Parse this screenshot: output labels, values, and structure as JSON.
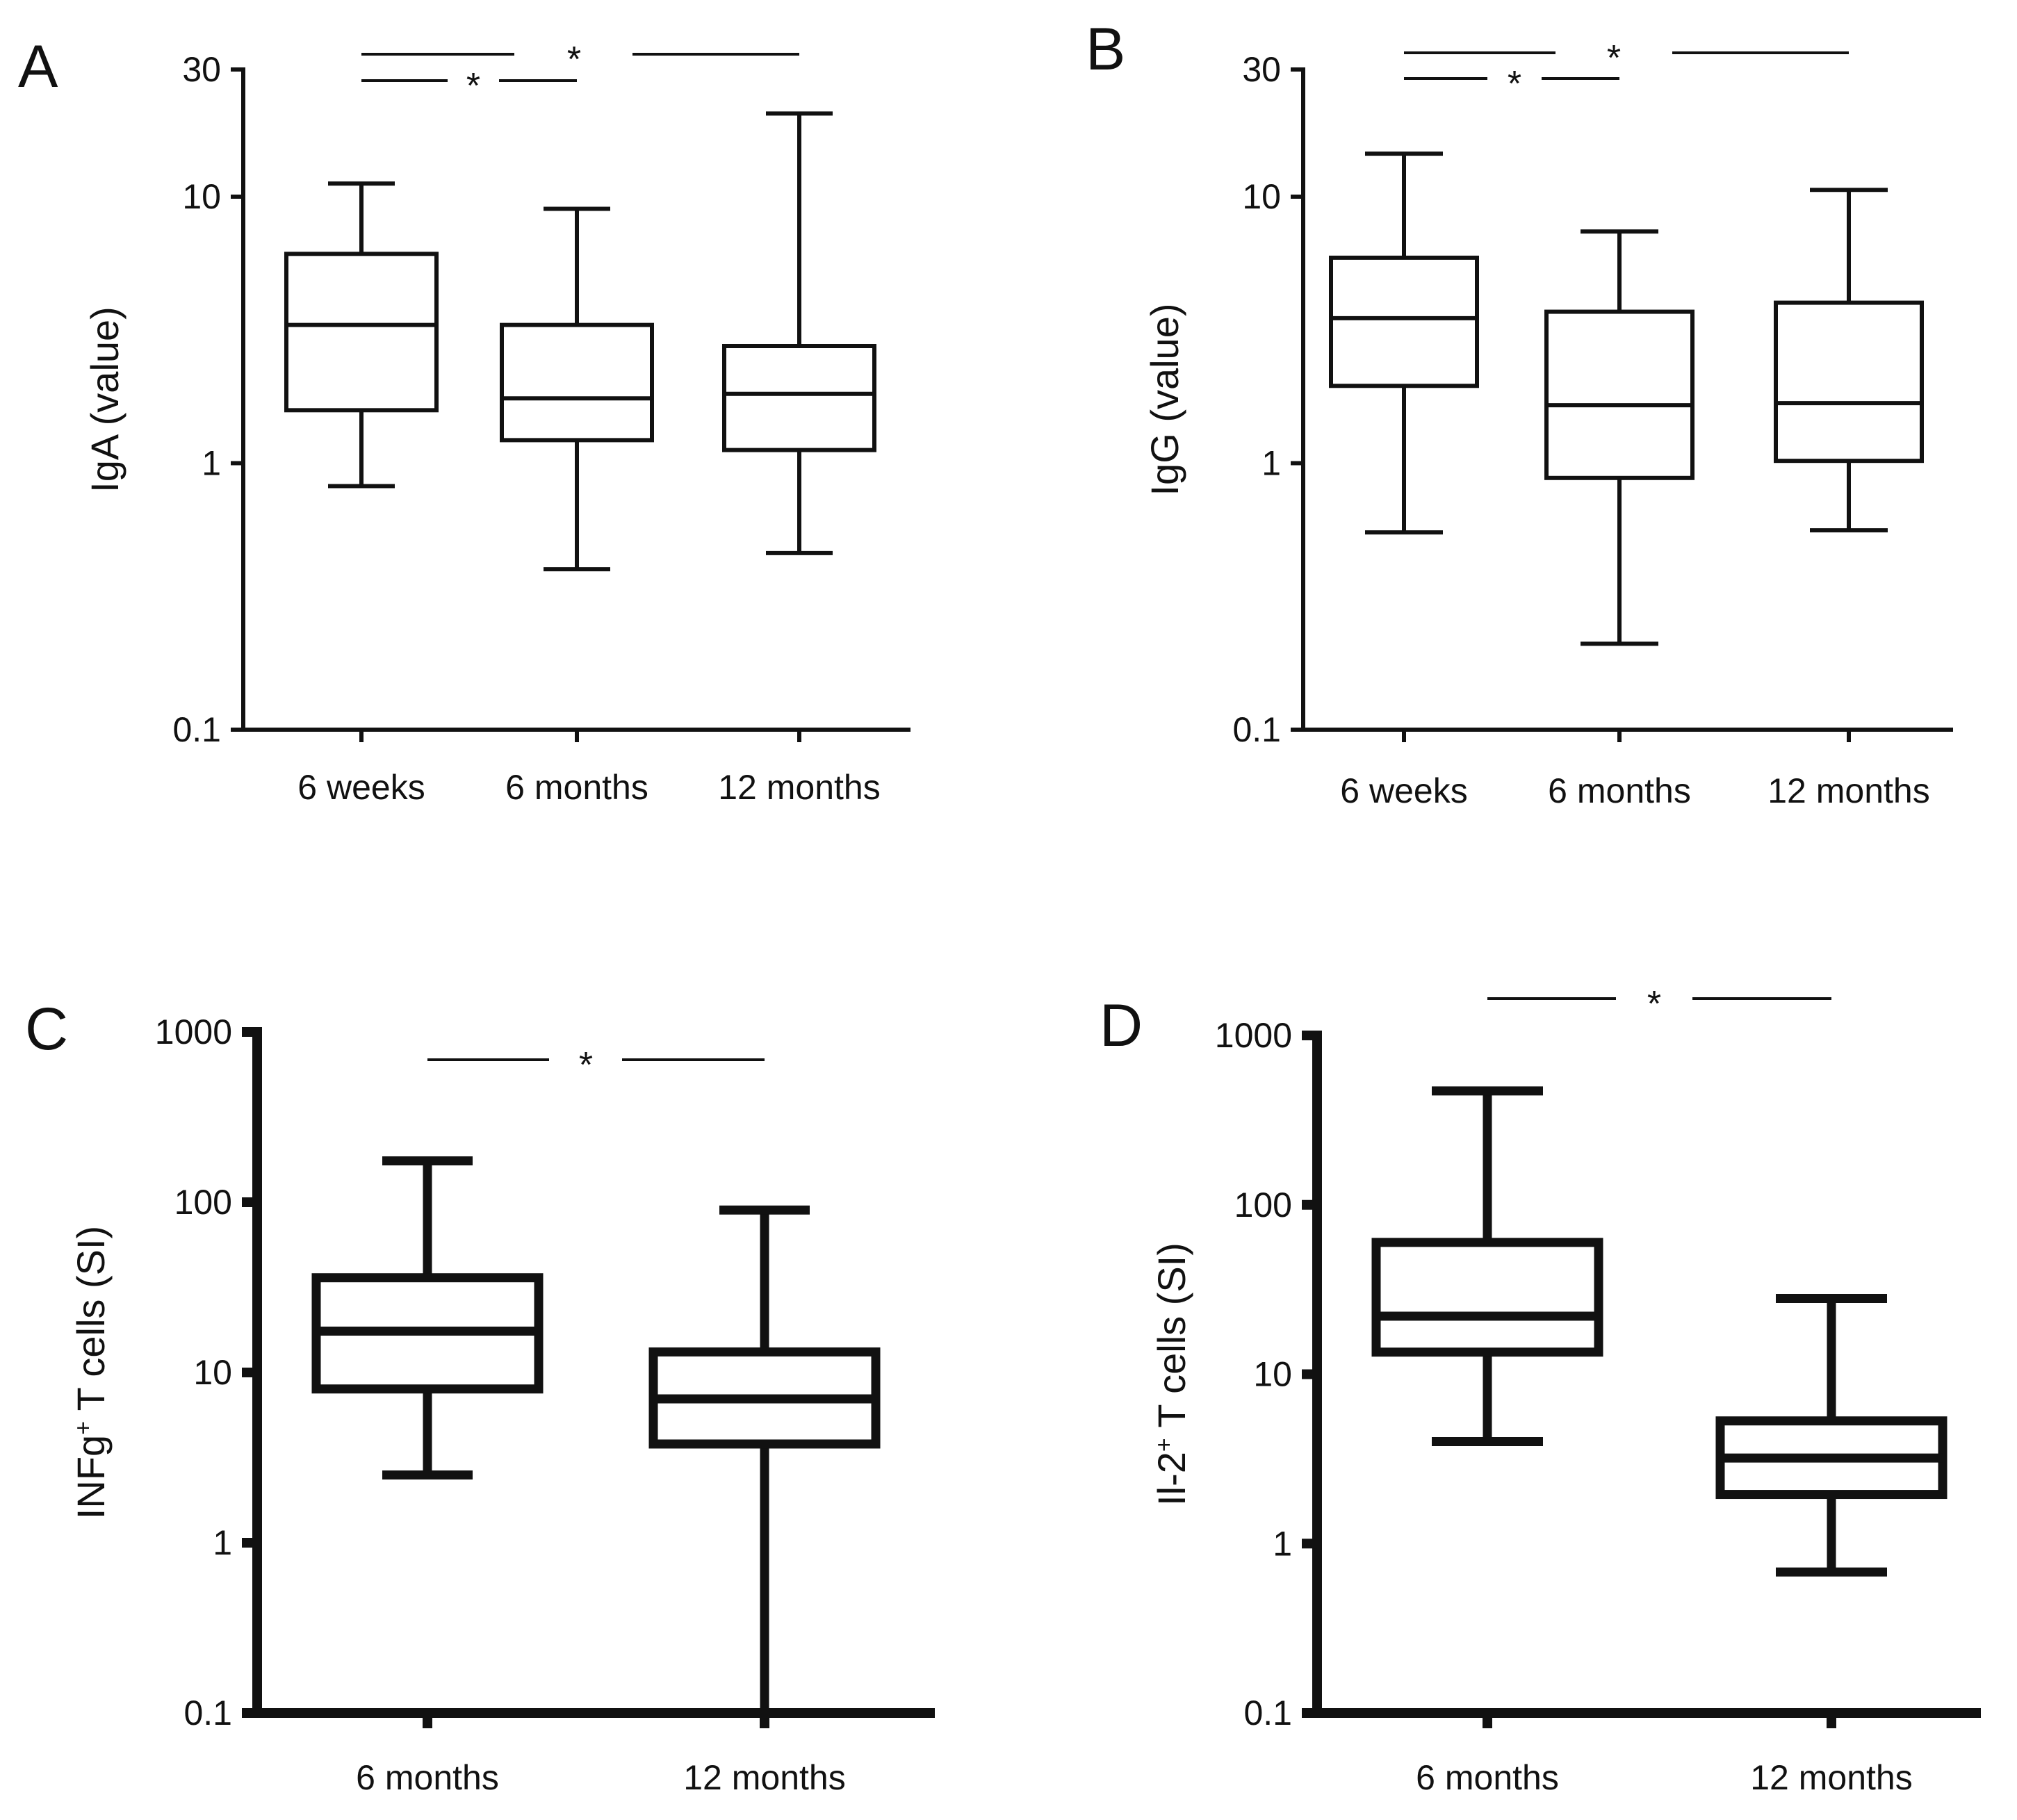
{
  "figure": {
    "background": "#ffffff",
    "ink": "#111111"
  },
  "chart_data": [
    {
      "panel": "A",
      "type": "box",
      "scale": "log",
      "ylabel": "IgA (value)",
      "ylabel_sup": "",
      "ylabel_rest": "",
      "ylim": [
        0.1,
        30
      ],
      "yticks": [
        {
          "value": 0.1,
          "label": "0.1"
        },
        {
          "value": 1,
          "label": "1"
        },
        {
          "value": 10,
          "label": "10"
        },
        {
          "value": 30,
          "label": "30"
        }
      ],
      "categories": [
        "6 weeks",
        "6 months",
        "12 months"
      ],
      "boxes": [
        {
          "min": 0.82,
          "q1": 1.58,
          "median": 3.3,
          "q3": 6.1,
          "max": 11.2
        },
        {
          "min": 0.4,
          "q1": 1.22,
          "median": 1.75,
          "q3": 3.3,
          "max": 9.0
        },
        {
          "min": 0.46,
          "q1": 1.12,
          "median": 1.82,
          "q3": 2.75,
          "max": 20.5
        }
      ],
      "significance": [
        {
          "from": 0,
          "to": 2,
          "label": "*"
        },
        {
          "from": 0,
          "to": 1,
          "label": "*"
        }
      ]
    },
    {
      "panel": "B",
      "type": "box",
      "scale": "log",
      "ylabel": "IgG (value)",
      "ylabel_sup": "",
      "ylabel_rest": "",
      "ylim": [
        0.1,
        30
      ],
      "yticks": [
        {
          "value": 0.1,
          "label": "0.1"
        },
        {
          "value": 1,
          "label": "1"
        },
        {
          "value": 10,
          "label": "10"
        },
        {
          "value": 30,
          "label": "30"
        }
      ],
      "categories": [
        "6 weeks",
        "6 months",
        "12 months"
      ],
      "boxes": [
        {
          "min": 0.55,
          "q1": 1.95,
          "median": 3.5,
          "q3": 5.9,
          "max": 14.5
        },
        {
          "min": 0.21,
          "q1": 0.88,
          "median": 1.65,
          "q3": 3.7,
          "max": 7.4
        },
        {
          "min": 0.56,
          "q1": 1.02,
          "median": 1.68,
          "q3": 4.0,
          "max": 10.6
        }
      ],
      "significance": [
        {
          "from": 0,
          "to": 2,
          "label": "*"
        },
        {
          "from": 0,
          "to": 1,
          "label": "*"
        }
      ]
    },
    {
      "panel": "C",
      "type": "box",
      "scale": "log",
      "ylabel": "INFg",
      "ylabel_sup": "+",
      "ylabel_rest": " T cells (SI)",
      "ylim": [
        0.1,
        1000
      ],
      "yticks": [
        {
          "value": 0.1,
          "label": "0.1"
        },
        {
          "value": 1,
          "label": "1"
        },
        {
          "value": 10,
          "label": "10"
        },
        {
          "value": 100,
          "label": "100"
        },
        {
          "value": 1000,
          "label": "1000"
        }
      ],
      "categories": [
        "6 months",
        "12 months"
      ],
      "boxes": [
        {
          "min": 2.5,
          "q1": 8.0,
          "median": 17.5,
          "q3": 36.0,
          "max": 175.0
        },
        {
          "min": 0.1,
          "q1": 3.8,
          "median": 7.0,
          "q3": 13.2,
          "max": 90.0
        }
      ],
      "significance": [
        {
          "from": 0,
          "to": 1,
          "label": "*"
        }
      ]
    },
    {
      "panel": "D",
      "type": "box",
      "scale": "log",
      "ylabel": "Il-2",
      "ylabel_sup": "+",
      "ylabel_rest": " T cells (SI)",
      "ylim": [
        0.1,
        1000
      ],
      "yticks": [
        {
          "value": 0.1,
          "label": "0.1"
        },
        {
          "value": 1,
          "label": "1"
        },
        {
          "value": 10,
          "label": "10"
        },
        {
          "value": 100,
          "label": "100"
        },
        {
          "value": 1000,
          "label": "1000"
        }
      ],
      "categories": [
        "6 months",
        "12 months"
      ],
      "boxes": [
        {
          "min": 4.0,
          "q1": 13.5,
          "median": 22.0,
          "q3": 60.0,
          "max": 470.0
        },
        {
          "min": 0.68,
          "q1": 1.95,
          "median": 3.2,
          "q3": 5.3,
          "max": 28.0
        }
      ],
      "significance": [
        {
          "from": 0,
          "to": 1,
          "label": "*"
        }
      ]
    }
  ]
}
